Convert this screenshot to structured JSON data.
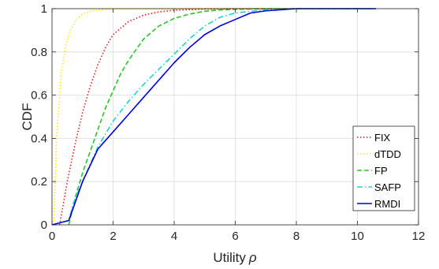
{
  "chart_data": {
    "type": "line",
    "title": "",
    "xlabel": "Utility",
    "xlabel_symbol": "ρ",
    "ylabel": "CDF",
    "xlim": [
      0,
      12
    ],
    "ylim": [
      0,
      1
    ],
    "xticks": [
      0,
      2,
      4,
      6,
      8,
      10,
      12
    ],
    "yticks": [
      0,
      0.2,
      0.4,
      0.6,
      0.8,
      1
    ],
    "xtick_labels": [
      "0",
      "2",
      "4",
      "6",
      "8",
      "10",
      "12"
    ],
    "ytick_labels": [
      "0",
      "0.2",
      "0.4",
      "0.6",
      "0.8",
      "1"
    ],
    "grid": true,
    "legend_position": "lower-right",
    "series": [
      {
        "name": "FIX",
        "color": "#e41a1c",
        "dash": "dotted",
        "x": [
          0.25,
          0.5,
          0.75,
          1.0,
          1.25,
          1.5,
          1.75,
          2.0,
          2.5,
          3.0,
          3.5,
          4.0,
          5.0,
          6.0,
          8.0,
          10.6
        ],
        "y": [
          0,
          0.2,
          0.37,
          0.52,
          0.64,
          0.74,
          0.82,
          0.88,
          0.94,
          0.97,
          0.985,
          0.993,
          0.998,
          1,
          1,
          1
        ]
      },
      {
        "name": "dTDD",
        "color": "#ffe600",
        "dash": "dotted",
        "x": [
          0.05,
          0.15,
          0.3,
          0.45,
          0.6,
          0.8,
          1.0,
          1.3,
          1.7,
          2.2,
          3.0,
          4.0,
          6.0,
          8.0,
          10.6
        ],
        "y": [
          0,
          0.4,
          0.7,
          0.83,
          0.9,
          0.95,
          0.975,
          0.99,
          0.996,
          1,
          1,
          1,
          1,
          1,
          1
        ]
      },
      {
        "name": "FP",
        "color": "#22c922",
        "dash": "dashed",
        "x": [
          0.55,
          0.75,
          1.0,
          1.25,
          1.5,
          1.75,
          2.0,
          2.25,
          2.5,
          3.0,
          3.5,
          4.0,
          4.5,
          5.0,
          5.5,
          6.0,
          7.0,
          8.0,
          10.6
        ],
        "y": [
          0,
          0.12,
          0.24,
          0.34,
          0.44,
          0.54,
          0.62,
          0.7,
          0.76,
          0.86,
          0.92,
          0.955,
          0.975,
          0.988,
          0.994,
          0.997,
          1,
          1,
          1
        ]
      },
      {
        "name": "SAFP",
        "color": "#17d4d4",
        "dash": "dashdot",
        "x": [
          0,
          0.55,
          0.7,
          1.0,
          1.5,
          2.0,
          2.5,
          3.0,
          3.5,
          4.0,
          4.5,
          5.0,
          5.5,
          6.0,
          7.0,
          8.0,
          10.6
        ],
        "y": [
          0,
          0.02,
          0.1,
          0.2,
          0.36,
          0.48,
          0.57,
          0.65,
          0.72,
          0.79,
          0.86,
          0.92,
          0.96,
          0.98,
          0.995,
          1,
          1
        ]
      },
      {
        "name": "RMDI",
        "color": "#0000e0",
        "dash": "solid",
        "x": [
          0,
          0.55,
          0.8,
          1.0,
          1.5,
          2.0,
          2.5,
          3.0,
          3.5,
          4.0,
          4.5,
          5.0,
          5.5,
          6.0,
          6.5,
          7.0,
          7.5,
          8.0,
          9.0,
          10.6
        ],
        "y": [
          0,
          0.02,
          0.12,
          0.2,
          0.35,
          0.43,
          0.51,
          0.59,
          0.67,
          0.75,
          0.82,
          0.88,
          0.92,
          0.95,
          0.98,
          0.99,
          0.995,
          1,
          1,
          1
        ]
      }
    ]
  }
}
